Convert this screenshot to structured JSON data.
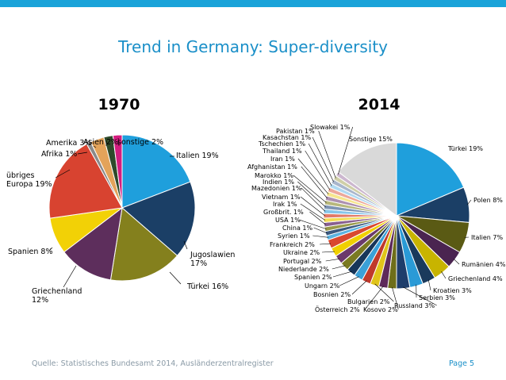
{
  "slide": {
    "title": "Trend in Germany: Super-diversity",
    "source": "Quelle: Statistisches Bundesamt 2014, Ausländerzentralregister",
    "page": "Page 5"
  },
  "colors": {
    "accent_bar": "#1aa3d9",
    "title": "#1a8fc8"
  },
  "chart_data": [
    {
      "type": "pie",
      "title": "1970",
      "slices": [
        {
          "name": "Italien",
          "label": "Italien 19%",
          "value": 19,
          "color": "#1f9fdc"
        },
        {
          "name": "Jugoslawien",
          "label": [
            "Jugoslawien",
            "17%"
          ],
          "value": 17,
          "color": "#1b3f66"
        },
        {
          "name": "Türkei",
          "label": "Türkei 16%",
          "value": 16,
          "color": "#84801d"
        },
        {
          "name": "Griechenland",
          "label": [
            "Griechenland",
            "12%"
          ],
          "value": 12,
          "color": "#5d2e5c"
        },
        {
          "name": "Spanien",
          "label": "Spanien 8%",
          "value": 8,
          "color": "#f2d106"
        },
        {
          "name": "übriges Europa",
          "label": [
            "übriges",
            "Europa 19%"
          ],
          "value": 19,
          "color": "#d84330"
        },
        {
          "name": "Afrika",
          "label": "Afrika 1%",
          "value": 1,
          "color": "#8a8a8a"
        },
        {
          "name": "Amerika",
          "label": "Amerika 3%",
          "value": 3,
          "color": "#e3a35a"
        },
        {
          "name": "Asien",
          "label": "Asien 2%",
          "value": 2,
          "color": "#2e4a2a"
        },
        {
          "name": "sonstige",
          "label": "sonstige 2%",
          "value": 2,
          "color": "#d41d7f"
        }
      ]
    },
    {
      "type": "pie",
      "title": "2014",
      "slices": [
        {
          "name": "Türkei",
          "label": "Türkei 19%",
          "value": 19,
          "color": "#1f9fdc"
        },
        {
          "name": "Polen",
          "label": "Polen 8%",
          "value": 8,
          "color": "#1b3f66"
        },
        {
          "name": "Italien",
          "label": "Italien 7%",
          "value": 7,
          "color": "#5a5a14"
        },
        {
          "name": "Rumänien",
          "label": "Rumänien 4%",
          "value": 4,
          "color": "#4a2450"
        },
        {
          "name": "Griechenland",
          "label": "Griechenland 4%",
          "value": 4,
          "color": "#c8b400"
        },
        {
          "name": "Kroatien",
          "label": "Kroatien 3%",
          "value": 3,
          "color": "#1a3a5c"
        },
        {
          "name": "Serbien",
          "label": "Serbien 3%",
          "value": 3,
          "color": "#2a9ad6"
        },
        {
          "name": "Russland",
          "label": "Russland 3%",
          "value": 3,
          "color": "#1e3d6b"
        },
        {
          "name": "Kosovo",
          "label": "Kosovo 2%",
          "value": 2,
          "color": "#6e6e1a"
        },
        {
          "name": "Österreich",
          "label": "Österreich 2%",
          "value": 2,
          "color": "#5e2a5a"
        },
        {
          "name": "Bulgarien",
          "label": "Bulgarien 2%",
          "value": 2,
          "color": "#e0c41a"
        },
        {
          "name": "Bosnien",
          "label": "Bosnien 2%",
          "value": 2,
          "color": "#c0392b"
        },
        {
          "name": "Ungarn",
          "label": "Ungarn 2%",
          "value": 2,
          "color": "#3aa0d8"
        },
        {
          "name": "Spanien",
          "label": "Spanien 2%",
          "value": 2,
          "color": "#17365a"
        },
        {
          "name": "Niederlande",
          "label": "Niederlande 2%",
          "value": 2,
          "color": "#7a7a22"
        },
        {
          "name": "Portugal",
          "label": "Portugal 2%",
          "value": 2,
          "color": "#6b3a6b"
        },
        {
          "name": "Ukraine",
          "label": "Ukraine 2%",
          "value": 2,
          "color": "#f0d000"
        },
        {
          "name": "Frankreich",
          "label": "Frankreich 2%",
          "value": 2,
          "color": "#d9482f"
        },
        {
          "name": "Syrien",
          "label": "Syrien 1%",
          "value": 1,
          "color": "#5bb3e0"
        },
        {
          "name": "China",
          "label": "China 1%",
          "value": 1,
          "color": "#3c5a80"
        },
        {
          "name": "USA",
          "label": "USA 1%",
          "value": 1,
          "color": "#9a9a4a"
        },
        {
          "name": "Großbrit.",
          "label": "Großbrit. 1%",
          "value": 1,
          "color": "#8a6090"
        },
        {
          "name": "Irak",
          "label": "Irak 1%",
          "value": 1,
          "color": "#f3dc55"
        },
        {
          "name": "Vietnam",
          "label": "Vietnam 1%",
          "value": 1,
          "color": "#e27a68"
        },
        {
          "name": "Mazedonien",
          "label": "Mazedonien 1%",
          "value": 1,
          "color": "#86c6ea"
        },
        {
          "name": "Indien",
          "label": "Indien 1%",
          "value": 1,
          "color": "#7e94b4"
        },
        {
          "name": "Marokko",
          "label": "Marokko 1%",
          "value": 1,
          "color": "#b7b77c"
        },
        {
          "name": "Afghanistan",
          "label": "Afghanistan 1%",
          "value": 1,
          "color": "#ad90b1"
        },
        {
          "name": "Iran",
          "label": "Iran 1%",
          "value": 1,
          "color": "#f6e68e"
        },
        {
          "name": "Thailand",
          "label": "Thailand 1%",
          "value": 1,
          "color": "#eca89a"
        },
        {
          "name": "Tschechien",
          "label": "Tschechien 1%",
          "value": 1,
          "color": "#b0d9f1"
        },
        {
          "name": "Kasachstan",
          "label": "Kasachstan 1%",
          "value": 1,
          "color": "#a9b6cc"
        },
        {
          "name": "Pakistan",
          "label": "Pakistan 1%",
          "value": 1,
          "color": "#cfcfa8"
        },
        {
          "name": "Slowakei",
          "label": "Slowakei 1%",
          "value": 1,
          "color": "#ccb7cf"
        },
        {
          "name": "Sonstige",
          "label": "Sonstige 15%",
          "value": 15,
          "color": "#d9d9d9"
        }
      ]
    }
  ]
}
